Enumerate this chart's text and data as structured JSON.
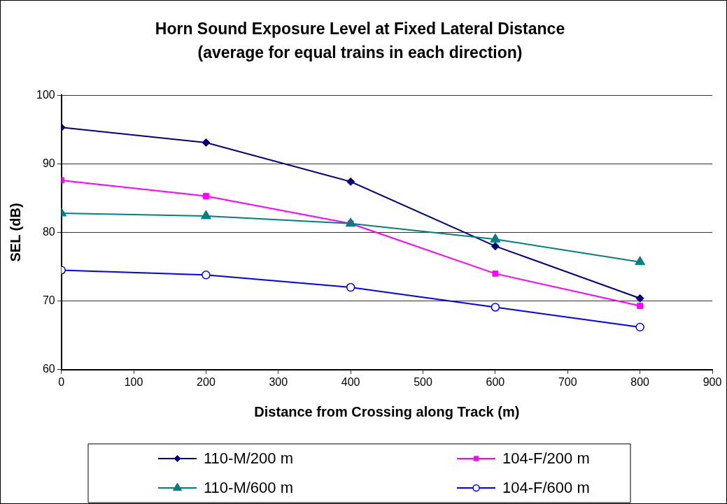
{
  "chart_data": {
    "type": "line",
    "title": "Horn Sound Exposure Level at Fixed Lateral Distance",
    "subtitle": "(average for equal trains in each direction)",
    "xlabel": "Distance from Crossing along Track (m)",
    "ylabel": "SEL (dB)",
    "x": [
      0,
      200,
      400,
      600,
      800
    ],
    "series": [
      {
        "name": "110-M/200 m",
        "color": "#000080",
        "marker": "diamond",
        "values": [
          95.3,
          93.1,
          87.4,
          78.0,
          70.4
        ]
      },
      {
        "name": "104-F/200 m",
        "color": "#ff00ff",
        "marker": "square",
        "values": [
          87.6,
          85.3,
          81.3,
          74.0,
          69.3
        ]
      },
      {
        "name": "110-M/600 m",
        "color": "#008080",
        "marker": "triangle",
        "values": [
          82.8,
          82.4,
          81.3,
          79.0,
          75.7
        ]
      },
      {
        "name": "104-F/600 m",
        "color": "#0000ff",
        "marker": "circle",
        "values": [
          74.5,
          73.8,
          72.0,
          69.1,
          66.2
        ]
      }
    ],
    "xlim": [
      0,
      900
    ],
    "xticks": [
      0,
      100,
      200,
      300,
      400,
      500,
      600,
      700,
      800,
      900
    ],
    "ylim": [
      60,
      100
    ],
    "yticks": [
      60,
      70,
      80,
      90,
      100
    ],
    "grid": "y",
    "legend": "bottom"
  }
}
